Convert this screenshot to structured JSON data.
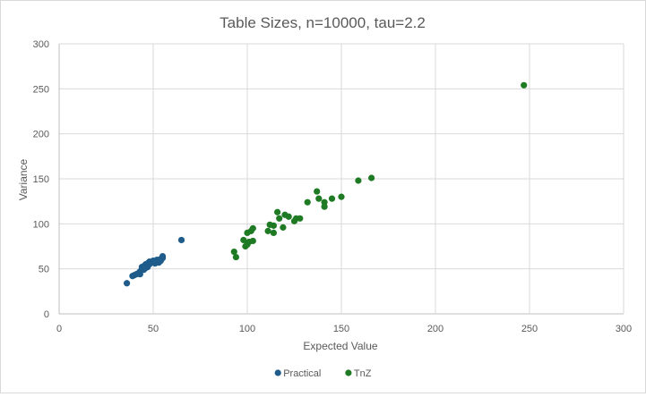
{
  "chart_data": {
    "type": "scatter",
    "title": "Table Sizes, n=10000, tau=2.2",
    "xlabel": "Expected Value",
    "ylabel": "Variance",
    "xlim": [
      0,
      300
    ],
    "ylim": [
      0,
      300
    ],
    "xticks": [
      0,
      50,
      100,
      150,
      200,
      250,
      300
    ],
    "yticks": [
      0,
      50,
      100,
      150,
      200,
      250,
      300
    ],
    "grid": true,
    "legend_position": "bottom",
    "series": [
      {
        "name": "Practical",
        "color": "#1f5c8b",
        "points": [
          [
            36,
            34
          ],
          [
            39,
            42
          ],
          [
            40,
            43
          ],
          [
            41,
            44
          ],
          [
            42,
            45
          ],
          [
            43,
            44
          ],
          [
            43,
            47
          ],
          [
            44,
            50
          ],
          [
            44,
            52
          ],
          [
            45,
            49
          ],
          [
            45,
            53
          ],
          [
            46,
            51
          ],
          [
            46,
            55
          ],
          [
            47,
            56
          ],
          [
            47,
            52
          ],
          [
            48,
            55
          ],
          [
            48,
            58
          ],
          [
            49,
            57
          ],
          [
            50,
            59
          ],
          [
            51,
            56
          ],
          [
            51,
            58
          ],
          [
            52,
            60
          ],
          [
            53,
            57
          ],
          [
            54,
            61
          ],
          [
            54,
            59
          ],
          [
            55,
            62
          ],
          [
            55,
            64
          ],
          [
            65,
            82
          ]
        ]
      },
      {
        "name": "TnZ",
        "color": "#1e7b24",
        "points": [
          [
            93,
            69
          ],
          [
            94,
            63
          ],
          [
            98,
            82
          ],
          [
            99,
            75
          ],
          [
            100,
            77
          ],
          [
            100,
            90
          ],
          [
            101,
            80
          ],
          [
            102,
            92
          ],
          [
            103,
            95
          ],
          [
            103,
            81
          ],
          [
            111,
            92
          ],
          [
            112,
            99
          ],
          [
            114,
            90
          ],
          [
            114,
            98
          ],
          [
            116,
            113
          ],
          [
            117,
            106
          ],
          [
            119,
            96
          ],
          [
            120,
            110
          ],
          [
            122,
            108
          ],
          [
            125,
            103
          ],
          [
            126,
            106
          ],
          [
            128,
            106
          ],
          [
            132,
            124
          ],
          [
            137,
            136
          ],
          [
            138,
            128
          ],
          [
            141,
            124
          ],
          [
            141,
            119
          ],
          [
            145,
            128
          ],
          [
            150,
            130
          ],
          [
            159,
            148
          ],
          [
            166,
            151
          ],
          [
            247,
            254
          ]
        ]
      }
    ]
  }
}
